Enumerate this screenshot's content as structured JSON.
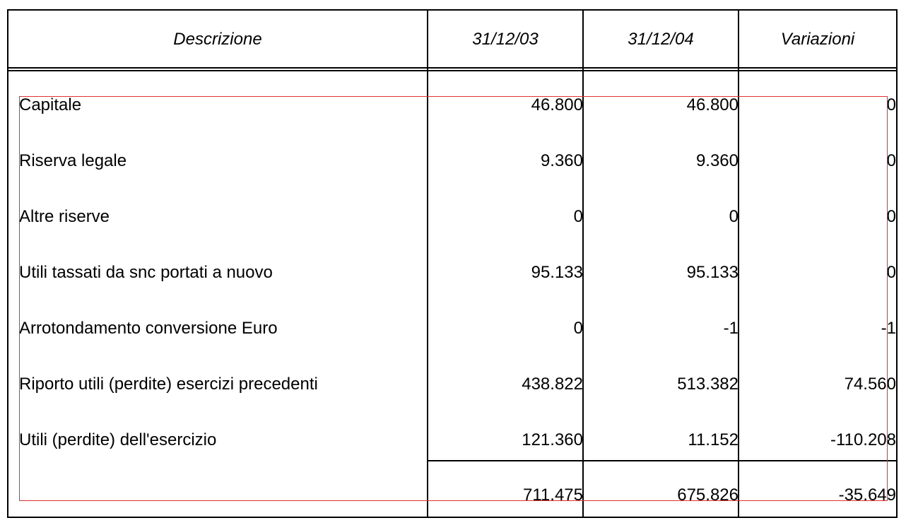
{
  "table": {
    "headers": {
      "description": "Descrizione",
      "col1": "31/12/03",
      "col2": "31/12/04",
      "col3": "Variazioni"
    },
    "rows": [
      {
        "label": "Capitale",
        "v2003": "46.800",
        "v2004": "46.800",
        "diff": "0"
      },
      {
        "label": "Riserva legale",
        "v2003": "9.360",
        "v2004": "9.360",
        "diff": "0"
      },
      {
        "label": "Altre riserve",
        "v2003": "0",
        "v2004": "0",
        "diff": "0"
      },
      {
        "label": "Utili tassati da snc portati a nuovo",
        "v2003": "95.133",
        "v2004": "95.133",
        "diff": "0"
      },
      {
        "label": "Arrotondamento conversione Euro",
        "v2003": "0",
        "v2004": "-1",
        "diff": "-1"
      },
      {
        "label": "Riporto utili (perdite) esercizi precedenti",
        "v2003": "438.822",
        "v2004": "513.382",
        "diff": "74.560"
      },
      {
        "label": "Utili (perdite) dell'esercizio",
        "v2003": "121.360",
        "v2004": "11.152",
        "diff": "-110.208"
      }
    ],
    "total": {
      "v2003": "711.475",
      "v2004": "675.826",
      "diff": "-35.649"
    }
  },
  "colors": {
    "annotation": "#e03030"
  }
}
